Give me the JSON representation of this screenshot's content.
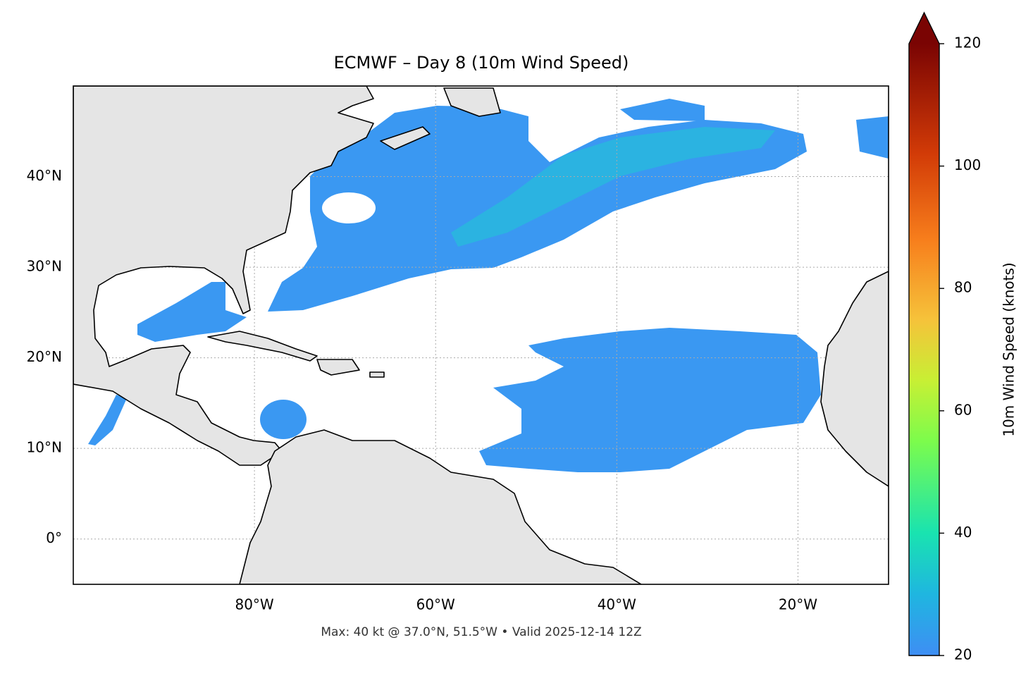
{
  "chart_data": {
    "type": "map",
    "title": "ECMWF – Day 8 (10m Wind Speed)",
    "xlim": [
      -100,
      -10
    ],
    "ylim": [
      -5,
      50
    ],
    "xticks": [
      {
        "value": -80,
        "label": "80°W"
      },
      {
        "value": -60,
        "label": "60°W"
      },
      {
        "value": -40,
        "label": "40°W"
      },
      {
        "value": -20,
        "label": "20°W"
      }
    ],
    "yticks": [
      {
        "value": 0,
        "label": "0°"
      },
      {
        "value": 10,
        "label": "10°N"
      },
      {
        "value": 20,
        "label": "20°N"
      },
      {
        "value": 30,
        "label": "30°N"
      },
      {
        "value": 40,
        "label": "40°N"
      }
    ],
    "grid": true,
    "colorbar_label": "10m Wind Speed (knots)",
    "clim": [
      20,
      120
    ],
    "cticks": [
      20,
      40,
      60,
      80,
      100,
      120
    ],
    "footer": "Max: 40 kt @ 37.0°N, 51.5°W • Valid 2025-12-14 12Z"
  }
}
